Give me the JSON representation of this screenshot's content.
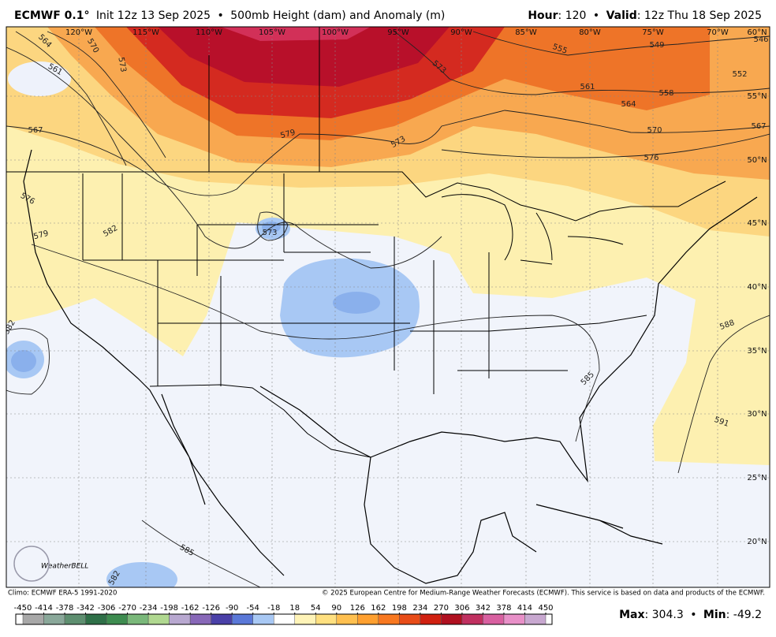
{
  "header": {
    "model": "ECMWF 0.1°",
    "init": "Init 12z 13 Sep 2025",
    "separator": "•",
    "field": "500mb Height (dam) and Anomaly (m)",
    "hour_label": "Hour",
    "hour": ": 120",
    "valid_label": "Valid",
    "valid": ": 12z Thu 18 Sep 2025"
  },
  "map": {
    "longitude_labels": [
      "120°W",
      "115°W",
      "110°W",
      "105°W",
      "100°W",
      "95°W",
      "90°W",
      "85°W",
      "80°W",
      "75°W",
      "70°W"
    ],
    "latitude_labels": [
      "60°N",
      "55°N",
      "50°N",
      "45°N",
      "40°N",
      "35°N",
      "30°N",
      "25°N",
      "20°N"
    ],
    "contour_labels": [
      564,
      570,
      573,
      561,
      567,
      579,
      573,
      573,
      555,
      549,
      552,
      561,
      558,
      564,
      570,
      576,
      567,
      546,
      573,
      582,
      579,
      576,
      588,
      585,
      591,
      585,
      582,
      582
    ],
    "logo": "WeatherBELL"
  },
  "footer": {
    "climo": "Climo: ECMWF ERA-5 1991-2020",
    "copyright": "© 2025 European Centre for Medium-Range Weather Forecasts (ECMWF). This service is based on data and products of the ECMWF."
  },
  "colorbar": {
    "ticks": [
      -450,
      -414,
      -378,
      -342,
      -306,
      -270,
      -234,
      -198,
      -162,
      -126,
      -90,
      -54,
      -18,
      18,
      54,
      90,
      126,
      162,
      198,
      234,
      270,
      306,
      342,
      378,
      414,
      450
    ],
    "colors": [
      "#a8a8a8",
      "#8aa89a",
      "#5e8f70",
      "#2f7048",
      "#3e8c50",
      "#7ab87a",
      "#b0d890",
      "#b8a8d0",
      "#8868b8",
      "#4a40a8",
      "#5a78d8",
      "#a8c8f4",
      "#ffffff",
      "#fff4b8",
      "#ffe080",
      "#ffc050",
      "#ffa030",
      "#f87820",
      "#e84c18",
      "#d02010",
      "#b01020",
      "#c03060",
      "#d860a0",
      "#e890c8",
      "#c8a8d0"
    ]
  },
  "stats": {
    "max_label": "Max",
    "max": ": 304.3",
    "separator": "•",
    "min_label": "Min",
    "min": ": -49.2"
  }
}
